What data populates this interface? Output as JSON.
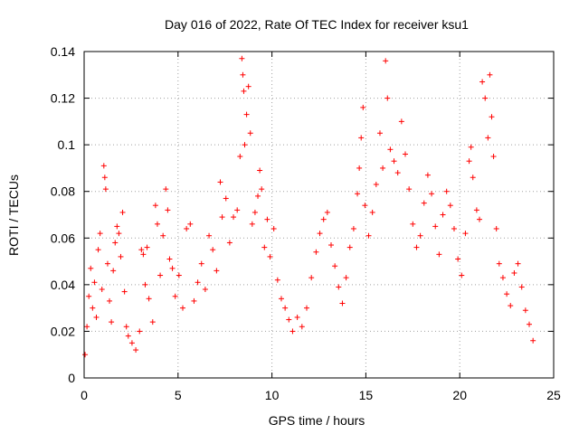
{
  "chart_data": {
    "type": "scatter",
    "title": "Day 016 of 2022, Rate Of TEC Index for receiver ksu1",
    "xlabel": "GPS time / hours",
    "ylabel": "ROTI / TECUs",
    "xlim": [
      0,
      25
    ],
    "ylim": [
      0,
      0.14
    ],
    "x_ticks": [
      0,
      5,
      10,
      15,
      20,
      25
    ],
    "x_tick_labels": [
      "0",
      "5",
      "10",
      "15",
      "20",
      "25"
    ],
    "y_ticks": [
      0,
      0.02,
      0.04,
      0.06,
      0.08,
      0.1,
      0.12,
      0.14
    ],
    "y_tick_labels": [
      "0",
      "0.02",
      "0.04",
      "0.06",
      "0.08",
      "0.1",
      "0.12",
      "0.14"
    ],
    "grid": true,
    "marker": "plus",
    "series_color": "#ff0000",
    "series": [
      {
        "points": [
          [
            0.05,
            0.01
          ],
          [
            0.15,
            0.022
          ],
          [
            0.25,
            0.035
          ],
          [
            0.35,
            0.047
          ],
          [
            0.45,
            0.03
          ],
          [
            0.55,
            0.041
          ],
          [
            0.65,
            0.026
          ],
          [
            0.75,
            0.055
          ],
          [
            0.85,
            0.062
          ],
          [
            0.95,
            0.038
          ],
          [
            1.05,
            0.091
          ],
          [
            1.1,
            0.086
          ],
          [
            1.15,
            0.081
          ],
          [
            1.25,
            0.049
          ],
          [
            1.35,
            0.033
          ],
          [
            1.45,
            0.024
          ],
          [
            1.55,
            0.046
          ],
          [
            1.65,
            0.058
          ],
          [
            1.75,
            0.065
          ],
          [
            1.85,
            0.062
          ],
          [
            1.95,
            0.052
          ],
          [
            2.05,
            0.071
          ],
          [
            2.15,
            0.037
          ],
          [
            2.25,
            0.022
          ],
          [
            2.35,
            0.018
          ],
          [
            2.55,
            0.015
          ],
          [
            2.75,
            0.012
          ],
          [
            2.95,
            0.02
          ],
          [
            3.05,
            0.055
          ],
          [
            3.15,
            0.053
          ],
          [
            3.25,
            0.04
          ],
          [
            3.35,
            0.056
          ],
          [
            3.45,
            0.034
          ],
          [
            3.65,
            0.024
          ],
          [
            3.8,
            0.074
          ],
          [
            3.9,
            0.066
          ],
          [
            4.05,
            0.044
          ],
          [
            4.2,
            0.061
          ],
          [
            4.35,
            0.081
          ],
          [
            4.45,
            0.072
          ],
          [
            4.55,
            0.051
          ],
          [
            4.7,
            0.047
          ],
          [
            4.85,
            0.035
          ],
          [
            5.05,
            0.044
          ],
          [
            5.25,
            0.03
          ],
          [
            5.45,
            0.064
          ],
          [
            5.65,
            0.066
          ],
          [
            5.85,
            0.033
          ],
          [
            6.05,
            0.041
          ],
          [
            6.25,
            0.049
          ],
          [
            6.45,
            0.038
          ],
          [
            6.65,
            0.061
          ],
          [
            6.85,
            0.055
          ],
          [
            7.05,
            0.046
          ],
          [
            7.25,
            0.084
          ],
          [
            7.35,
            0.069
          ],
          [
            7.55,
            0.077
          ],
          [
            7.75,
            0.058
          ],
          [
            7.95,
            0.069
          ],
          [
            8.15,
            0.072
          ],
          [
            8.3,
            0.095
          ],
          [
            8.4,
            0.137
          ],
          [
            8.45,
            0.13
          ],
          [
            8.5,
            0.123
          ],
          [
            8.55,
            0.1
          ],
          [
            8.65,
            0.113
          ],
          [
            8.75,
            0.125
          ],
          [
            8.85,
            0.105
          ],
          [
            8.95,
            0.066
          ],
          [
            9.1,
            0.071
          ],
          [
            9.25,
            0.078
          ],
          [
            9.35,
            0.089
          ],
          [
            9.45,
            0.081
          ],
          [
            9.6,
            0.056
          ],
          [
            9.75,
            0.068
          ],
          [
            9.9,
            0.052
          ],
          [
            10.1,
            0.064
          ],
          [
            10.3,
            0.042
          ],
          [
            10.5,
            0.034
          ],
          [
            10.7,
            0.03
          ],
          [
            10.9,
            0.025
          ],
          [
            11.1,
            0.02
          ],
          [
            11.35,
            0.026
          ],
          [
            11.6,
            0.022
          ],
          [
            11.85,
            0.03
          ],
          [
            12.1,
            0.043
          ],
          [
            12.35,
            0.054
          ],
          [
            12.55,
            0.062
          ],
          [
            12.75,
            0.068
          ],
          [
            12.95,
            0.071
          ],
          [
            13.15,
            0.057
          ],
          [
            13.35,
            0.048
          ],
          [
            13.55,
            0.039
          ],
          [
            13.75,
            0.032
          ],
          [
            13.95,
            0.043
          ],
          [
            14.15,
            0.056
          ],
          [
            14.35,
            0.064
          ],
          [
            14.55,
            0.079
          ],
          [
            14.65,
            0.09
          ],
          [
            14.75,
            0.103
          ],
          [
            14.85,
            0.116
          ],
          [
            14.95,
            0.074
          ],
          [
            15.15,
            0.061
          ],
          [
            15.35,
            0.071
          ],
          [
            15.55,
            0.083
          ],
          [
            15.75,
            0.105
          ],
          [
            15.9,
            0.09
          ],
          [
            16.05,
            0.136
          ],
          [
            16.15,
            0.12
          ],
          [
            16.3,
            0.098
          ],
          [
            16.5,
            0.093
          ],
          [
            16.7,
            0.088
          ],
          [
            16.9,
            0.11
          ],
          [
            17.1,
            0.096
          ],
          [
            17.3,
            0.081
          ],
          [
            17.5,
            0.066
          ],
          [
            17.7,
            0.056
          ],
          [
            17.9,
            0.061
          ],
          [
            18.1,
            0.075
          ],
          [
            18.3,
            0.087
          ],
          [
            18.5,
            0.079
          ],
          [
            18.7,
            0.065
          ],
          [
            18.9,
            0.053
          ],
          [
            19.1,
            0.07
          ],
          [
            19.3,
            0.08
          ],
          [
            19.5,
            0.074
          ],
          [
            19.7,
            0.064
          ],
          [
            19.9,
            0.051
          ],
          [
            20.1,
            0.044
          ],
          [
            20.3,
            0.062
          ],
          [
            20.5,
            0.093
          ],
          [
            20.6,
            0.099
          ],
          [
            20.7,
            0.086
          ],
          [
            20.9,
            0.072
          ],
          [
            21.05,
            0.068
          ],
          [
            21.2,
            0.127
          ],
          [
            21.35,
            0.12
          ],
          [
            21.5,
            0.103
          ],
          [
            21.6,
            0.13
          ],
          [
            21.7,
            0.112
          ],
          [
            21.8,
            0.095
          ],
          [
            21.95,
            0.064
          ],
          [
            22.1,
            0.049
          ],
          [
            22.3,
            0.043
          ],
          [
            22.5,
            0.036
          ],
          [
            22.7,
            0.031
          ],
          [
            22.9,
            0.045
          ],
          [
            23.1,
            0.049
          ],
          [
            23.3,
            0.039
          ],
          [
            23.5,
            0.029
          ],
          [
            23.7,
            0.023
          ],
          [
            23.9,
            0.016
          ]
        ]
      }
    ]
  }
}
